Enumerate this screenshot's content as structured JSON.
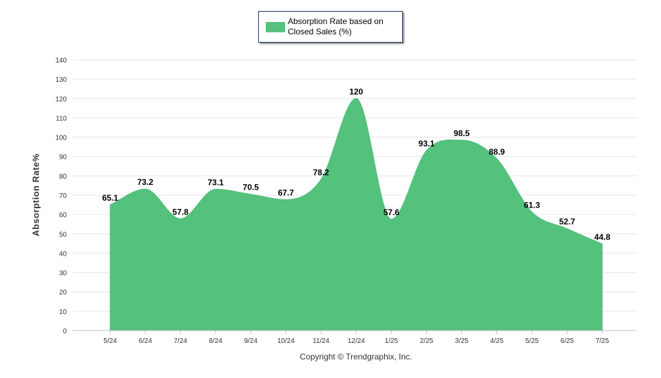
{
  "chart_data": {
    "type": "area",
    "categories": [
      "5/24",
      "6/24",
      "7/24",
      "8/24",
      "9/24",
      "10/24",
      "11/24",
      "12/24",
      "1/25",
      "2/25",
      "3/25",
      "4/25",
      "5/25",
      "6/25",
      "7/25"
    ],
    "series": [
      {
        "name": "Absorption Rate based on Closed Sales (%)",
        "values": [
          65.1,
          73.2,
          57.8,
          73.1,
          70.5,
          67.7,
          78.2,
          120,
          57.6,
          93.1,
          98.5,
          88.9,
          61.3,
          52.7,
          44.8
        ],
        "color": "#54c17c"
      }
    ],
    "ylabel": "Absorption Rate%",
    "xlabel": "",
    "ylim": [
      0,
      140
    ],
    "yticks": [
      0,
      10,
      20,
      30,
      40,
      50,
      60,
      70,
      80,
      90,
      100,
      110,
      120,
      130,
      140
    ],
    "grid": true,
    "legend_position": "top-center",
    "data_labels": true
  },
  "legend": {
    "label_line1": "Absorption Rate based on",
    "label_line2": "Closed Sales (%)"
  },
  "footer": {
    "copyright": "Copyright © Trendgraphix, Inc."
  }
}
